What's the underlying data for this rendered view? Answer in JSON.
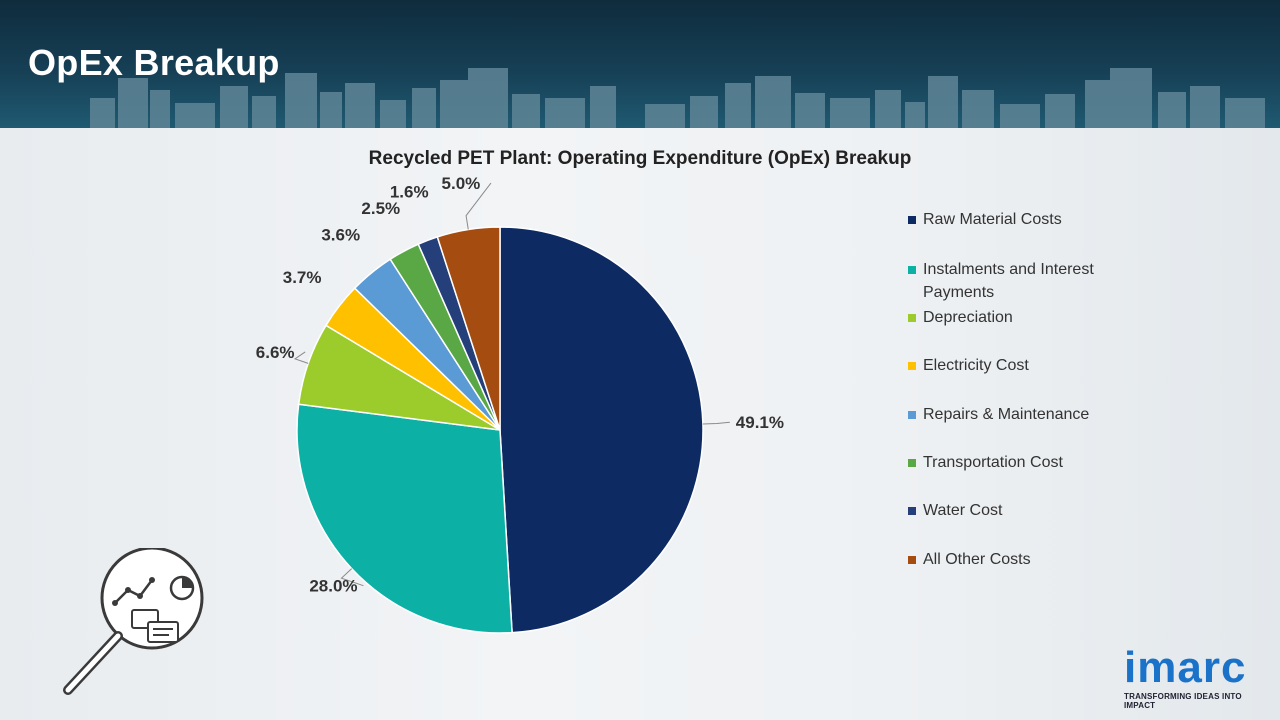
{
  "header": {
    "title": "OpEx Breakup"
  },
  "colors": {
    "header_bg": "#163f55",
    "raw_material": "#0d2a62",
    "instalments": "#0db0a5",
    "depreciation": "#9bcc2c",
    "electricity": "#ffc000",
    "repairs": "#5b9bd5",
    "transportation": "#5aa845",
    "water": "#243f7a",
    "other": "#a54d10"
  },
  "chart_data": {
    "type": "pie",
    "title": "Recycled PET Plant: Operating Expenditure (OpEx) Breakup",
    "categories": [
      "Raw Material Costs",
      "Instalments and Interest Payments",
      "Depreciation",
      "Electricity Cost",
      "Repairs & Maintenance",
      "Transportation Cost",
      "Water Cost",
      "All Other Costs"
    ],
    "values": [
      49.1,
      28.0,
      6.6,
      3.7,
      3.6,
      2.5,
      1.6,
      5.0
    ],
    "labels": [
      "49.1%",
      "28.0%",
      "6.6%",
      "3.7%",
      "3.6%",
      "2.5%",
      "1.6%",
      "5.0%"
    ],
    "colors": [
      "#0d2a62",
      "#0db0a5",
      "#9bcc2c",
      "#ffc000",
      "#5b9bd5",
      "#5aa845",
      "#243f7a",
      "#a54d10"
    ],
    "legend_position": "right",
    "start_angle": "12 o'clock",
    "direction": "clockwise"
  },
  "logo": {
    "name": "imarc",
    "tagline": "TRANSFORMING IDEAS INTO IMPACT"
  },
  "icons": {
    "corner_illustration": "magnifier-analytics-icon"
  }
}
